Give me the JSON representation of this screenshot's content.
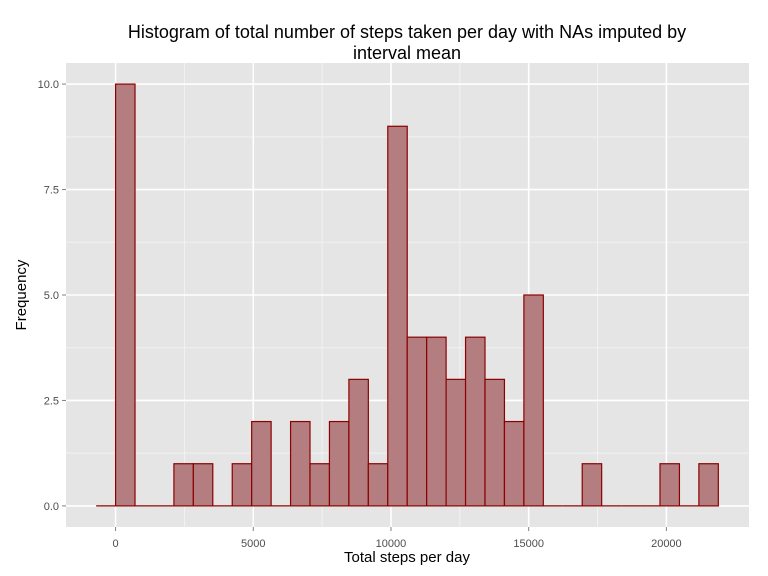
{
  "chart_data": {
    "type": "bar",
    "title_lines": [
      "Histogram of total number of steps taken per day with NAs imputed by",
      "interval mean"
    ],
    "xlabel": "Total steps per day",
    "ylabel": "Frequency",
    "xlim": [
      -1800,
      23000
    ],
    "ylim": [
      -0.5,
      10.5
    ],
    "x_ticks": [
      0,
      5000,
      10000,
      15000,
      20000
    ],
    "x_tick_labels": [
      "0",
      "5000",
      "10000",
      "15000",
      "20000"
    ],
    "y_ticks": [
      0,
      2.5,
      5,
      7.5,
      10
    ],
    "y_tick_labels": [
      "0.0",
      "2.5",
      "5.0",
      "7.5",
      "10.0"
    ],
    "grid": true,
    "bin_width": 706,
    "bin_centers": [
      -353,
      353,
      1059,
      1765,
      2471,
      3177,
      3883,
      4589,
      5295,
      6001,
      6707,
      7413,
      8119,
      8825,
      9531,
      10237,
      10943,
      11649,
      12355,
      13061,
      13767,
      14473,
      15179,
      15885,
      16591,
      17297,
      18003,
      18709,
      19415,
      20121,
      20827,
      21533
    ],
    "values": [
      0,
      10,
      0,
      0,
      1,
      1,
      0,
      1,
      2,
      0,
      2,
      1,
      2,
      3,
      1,
      9,
      4,
      4,
      3,
      4,
      3,
      2,
      5,
      0,
      0,
      1,
      0,
      0,
      0,
      1,
      0,
      1
    ],
    "colors": {
      "panel_background": "#e5e5e5",
      "grid_major": "#ffffff",
      "grid_minor": "#f2f2f2",
      "bar_fill": "#b47e80",
      "bar_outline": "#8b0000"
    }
  }
}
